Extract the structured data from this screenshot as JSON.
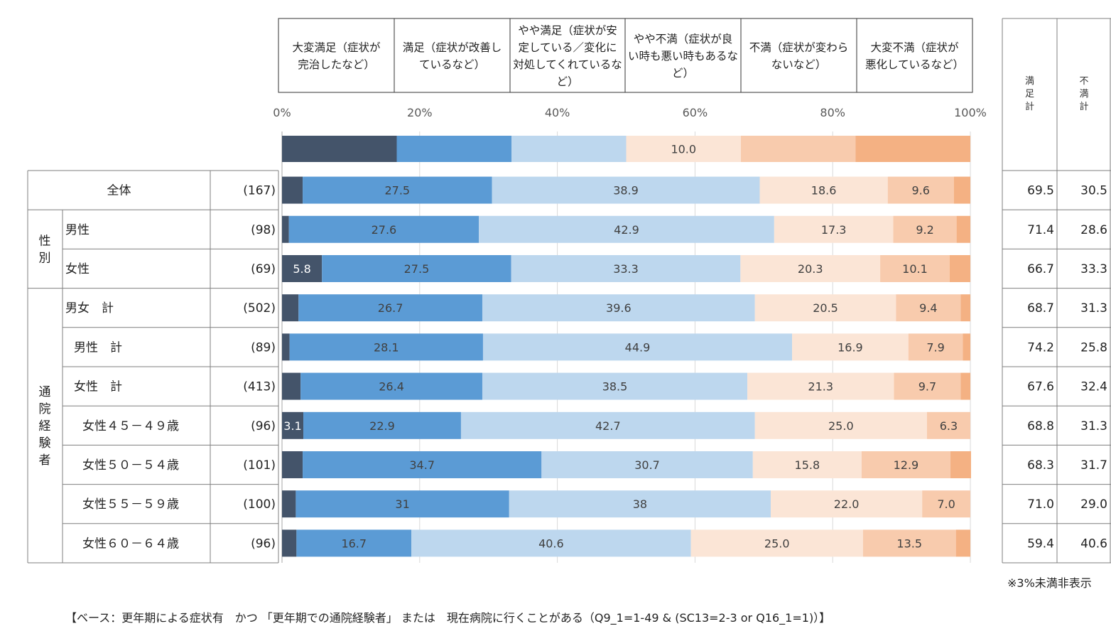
{
  "chart_data": {
    "type": "bar",
    "orientation": "horizontal",
    "stacked": true,
    "xlim": [
      0,
      100
    ],
    "x_ticks": [
      "0%",
      "20%",
      "40%",
      "60%",
      "80%",
      "100%"
    ],
    "series": [
      {
        "name": "大変満足（症状が完治したなど）",
        "color": "#44546A"
      },
      {
        "name": "満足（症状が改善しているなど）",
        "color": "#5B9BD5"
      },
      {
        "name": "やや満足（症状が安定している／変化に対処してくれているなど）",
        "color": "#BDD7EE"
      },
      {
        "name": "やや不満（症状が良い時も悪い時もあるなど）",
        "color": "#FBE5D6"
      },
      {
        "name": "不満（症状が変わらないなど）",
        "color": "#F8CBAD"
      },
      {
        "name": "大変不満（症状が悪化しているなど）",
        "color": "#F4B183"
      }
    ],
    "legend_bar": {
      "value_label": "10.0"
    },
    "summary_headers": [
      "満足計",
      "不満計"
    ],
    "group_labels": {
      "gender": "性別",
      "visit": "通院経験者"
    },
    "rows": [
      {
        "label": "全体",
        "n": "(167)",
        "values": [
          3.0,
          27.5,
          38.9,
          18.6,
          9.6,
          2.4
        ],
        "labels": [
          "",
          "27.5",
          "38.9",
          "18.6",
          "9.6",
          ""
        ],
        "satisfied": "69.5",
        "dissatisfied": "30.5"
      },
      {
        "label": "男性",
        "n": "(98)",
        "values": [
          1.0,
          27.6,
          42.9,
          17.3,
          9.2,
          2.0
        ],
        "labels": [
          "",
          "27.6",
          "42.9",
          "17.3",
          "9.2",
          ""
        ],
        "satisfied": "71.4",
        "dissatisfied": "28.6"
      },
      {
        "label": "女性",
        "n": "(69)",
        "values": [
          5.8,
          27.5,
          33.3,
          20.3,
          10.1,
          3.0
        ],
        "labels": [
          "5.8",
          "27.5",
          "33.3",
          "20.3",
          "10.1",
          ""
        ],
        "satisfied": "66.7",
        "dissatisfied": "33.3"
      },
      {
        "label": "男女　計",
        "n": "(502)",
        "values": [
          2.4,
          26.7,
          39.6,
          20.5,
          9.4,
          1.4
        ],
        "labels": [
          "",
          "26.7",
          "39.6",
          "20.5",
          "9.4",
          ""
        ],
        "satisfied": "68.7",
        "dissatisfied": "31.3"
      },
      {
        "label": "男性　計",
        "n": "(89)",
        "values": [
          1.1,
          28.1,
          44.9,
          16.9,
          7.9,
          1.1
        ],
        "labels": [
          "",
          "28.1",
          "44.9",
          "16.9",
          "7.9",
          ""
        ],
        "satisfied": "74.2",
        "dissatisfied": "25.8"
      },
      {
        "label": "女性　計",
        "n": "(413)",
        "values": [
          2.7,
          26.4,
          38.5,
          21.3,
          9.7,
          1.4
        ],
        "labels": [
          "",
          "26.4",
          "38.5",
          "21.3",
          "9.7",
          ""
        ],
        "satisfied": "67.6",
        "dissatisfied": "32.4"
      },
      {
        "label": "女性４５－４９歳",
        "n": "(96)",
        "values": [
          3.1,
          22.9,
          42.7,
          25.0,
          6.3,
          0.0
        ],
        "labels": [
          "3.1",
          "22.9",
          "42.7",
          "25.0",
          "6.3",
          ""
        ],
        "satisfied": "68.8",
        "dissatisfied": "31.3"
      },
      {
        "label": "女性５０－５４歳",
        "n": "(101)",
        "values": [
          3.0,
          34.7,
          30.7,
          15.8,
          12.9,
          3.0
        ],
        "labels": [
          "",
          "34.7",
          "30.7",
          "15.8",
          "12.9",
          ""
        ],
        "satisfied": "68.3",
        "dissatisfied": "31.7"
      },
      {
        "label": "女性５５－５９歳",
        "n": "(100)",
        "values": [
          2.0,
          31.0,
          38.0,
          22.0,
          7.0,
          0.0
        ],
        "labels": [
          "",
          "31",
          "38",
          "22.0",
          "7.0",
          ""
        ],
        "satisfied": "71.0",
        "dissatisfied": "29.0"
      },
      {
        "label": "女性６０－６４歳",
        "n": "(96)",
        "values": [
          2.1,
          16.7,
          40.6,
          25.0,
          13.5,
          2.1
        ],
        "labels": [
          "",
          "16.7",
          "40.6",
          "25.0",
          "13.5",
          ""
        ],
        "satisfied": "59.4",
        "dissatisfied": "40.6"
      }
    ],
    "notes": {
      "threshold": "※3%未満非表示",
      "base": "【ベース：更年期による症状有　かつ 「更年期での通院経験者」 または　現在病院に行くことがある（Q9_1=1-49 & (SC13=2-3 or Q16_1=1)）】"
    }
  }
}
